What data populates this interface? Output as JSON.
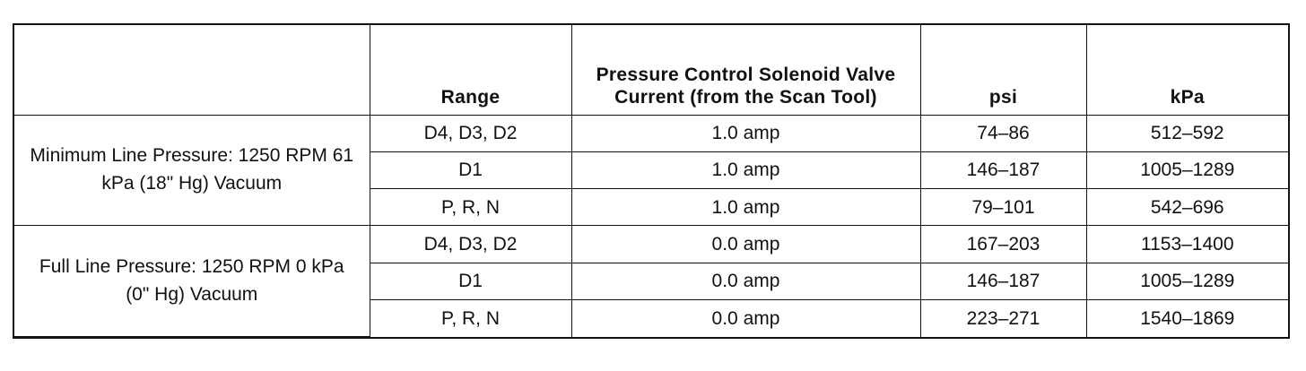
{
  "table": {
    "headers": {
      "condition": "",
      "range": "Range",
      "current": "Pressure Control Solenoid Valve Current (from the Scan Tool)",
      "psi": "psi",
      "kpa": "kPa"
    },
    "groups": [
      {
        "label": "Minimum Line Pressure: 1250 RPM 61 kPa (18\" Hg) Vacuum",
        "rows": [
          {
            "range": "D4, D3, D2",
            "current": "1.0 amp",
            "psi": "74–86",
            "kpa": "512–592"
          },
          {
            "range": "D1",
            "current": "1.0 amp",
            "psi": "146–187",
            "kpa": "1005–1289"
          },
          {
            "range": "P, R, N",
            "current": "1.0 amp",
            "psi": "79–101",
            "kpa": "542–696"
          }
        ]
      },
      {
        "label": "Full Line Pressure: 1250 RPM 0 kPa (0\" Hg) Vacuum",
        "rows": [
          {
            "range": "D4, D3, D2",
            "current": "0.0 amp",
            "psi": "167–203",
            "kpa": "1153–1400"
          },
          {
            "range": "D1",
            "current": "0.0 amp",
            "psi": "146–187",
            "kpa": "1005–1289"
          },
          {
            "range": "P, R, N",
            "current": "0.0 amp",
            "psi": "223–271",
            "kpa": "1540–1869"
          }
        ]
      }
    ]
  }
}
